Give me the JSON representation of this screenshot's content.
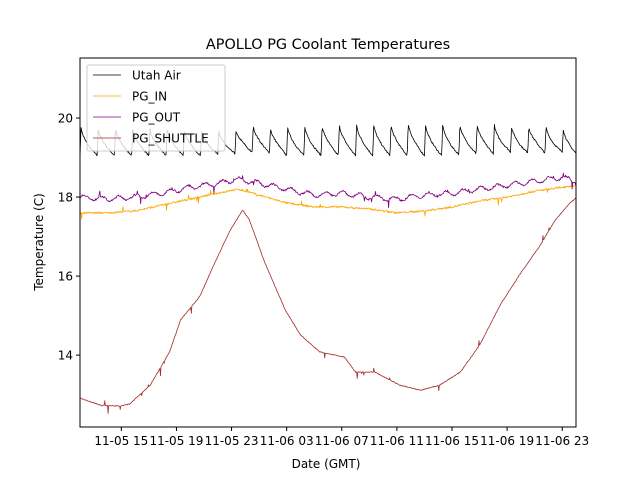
{
  "chart_data": {
    "type": "line",
    "title": "APOLLO PG Coolant Temperatures",
    "xlabel": "Date (GMT)",
    "ylabel": "Temperature (C)",
    "x_units": "hours since 11-05 00:00 GMT",
    "xlim": [
      12,
      48
    ],
    "ylim": [
      12.18,
      21.52
    ],
    "grid": false,
    "legend_position": "top-left",
    "x_ticks": [
      {
        "value": 15,
        "label": "11-05 15"
      },
      {
        "value": 19,
        "label": "11-05 19"
      },
      {
        "value": 23,
        "label": "11-05 23"
      },
      {
        "value": 27,
        "label": "11-06 03"
      },
      {
        "value": 31,
        "label": "11-06 07"
      },
      {
        "value": 35,
        "label": "11-06 11"
      },
      {
        "value": 39,
        "label": "11-06 15"
      },
      {
        "value": 43,
        "label": "11-06 19"
      },
      {
        "value": 47,
        "label": "11-06 23"
      }
    ],
    "y_ticks": [
      {
        "value": 14,
        "label": "14"
      },
      {
        "value": 16,
        "label": "16"
      },
      {
        "value": 18,
        "label": "18"
      },
      {
        "value": 20,
        "label": "20"
      }
    ],
    "series": [
      {
        "name": "Utah Air",
        "color": "#000000",
        "style": "sawtooth",
        "description": "Periodic sawtooth cycling roughly every 1.25 h between ~19.0 and ~19.8 C",
        "x": [
          12,
          13,
          14,
          15,
          16,
          17,
          18,
          19,
          20,
          21,
          22,
          23,
          24,
          25,
          26,
          27,
          28,
          29,
          30,
          31,
          32,
          33,
          34,
          35,
          36,
          37,
          38,
          39,
          40,
          41,
          42,
          43,
          44,
          45,
          46,
          47,
          48
        ],
        "min": [
          19.0,
          19.05,
          19.05,
          19.05,
          19.05,
          19.05,
          19.05,
          19.05,
          19.05,
          19.05,
          19.1,
          19.1,
          19.1,
          19.15,
          19.1,
          19.05,
          19.05,
          19.05,
          19.05,
          19.05,
          19.05,
          19.05,
          19.05,
          19.05,
          19.05,
          19.05,
          19.05,
          19.05,
          19.1,
          19.1,
          19.1,
          19.15,
          19.1,
          19.15,
          19.1,
          19.15,
          19.05
        ],
        "max": [
          19.8,
          19.75,
          19.75,
          19.75,
          19.75,
          19.75,
          19.75,
          19.75,
          19.7,
          19.7,
          19.7,
          19.6,
          19.85,
          19.8,
          19.75,
          19.8,
          19.8,
          19.8,
          19.85,
          19.85,
          19.85,
          19.85,
          19.85,
          19.85,
          19.9,
          19.85,
          19.85,
          19.85,
          19.85,
          19.85,
          19.85,
          19.8,
          19.8,
          19.8,
          19.8,
          19.75,
          19.5
        ],
        "period_hours": 1.25
      },
      {
        "name": "PG_IN",
        "color": "#ffa500",
        "x": [
          12,
          14,
          16,
          18,
          20,
          22,
          23.5,
          25,
          27,
          29,
          31,
          33,
          35,
          37,
          39,
          41,
          43,
          45,
          47,
          48
        ],
        "y": [
          17.6,
          17.6,
          17.65,
          17.8,
          17.95,
          18.1,
          18.2,
          18.05,
          17.85,
          17.75,
          17.75,
          17.7,
          17.6,
          17.65,
          17.75,
          17.9,
          18.0,
          18.15,
          18.25,
          18.3
        ]
      },
      {
        "name": "PG_OUT",
        "color": "#800080",
        "x": [
          12,
          14,
          16,
          18,
          20,
          22,
          23.5,
          25,
          27,
          29,
          31,
          33,
          35,
          37,
          39,
          41,
          43,
          45,
          47,
          48
        ],
        "y": [
          18.0,
          17.95,
          18.0,
          18.1,
          18.25,
          18.35,
          18.45,
          18.35,
          18.2,
          18.05,
          18.1,
          18.0,
          17.95,
          18.05,
          18.1,
          18.2,
          18.3,
          18.4,
          18.5,
          18.4
        ]
      },
      {
        "name": "PG_SHUTTLE",
        "color": "#a52a2a",
        "x": [
          12,
          13.5,
          14.9,
          15.6,
          17.1,
          18.5,
          19.3,
          20.7,
          21.8,
          22.9,
          23.8,
          24.3,
          25.4,
          26.9,
          28.0,
          29.4,
          31.2,
          32.0,
          33.4,
          35.2,
          36.7,
          38.1,
          39.6,
          41.0,
          42.5,
          43.9,
          45.4,
          46.5,
          47.6,
          48.0
        ],
        "y": [
          12.91,
          12.73,
          12.71,
          12.76,
          13.24,
          14.08,
          14.89,
          15.49,
          16.35,
          17.16,
          17.67,
          17.42,
          16.35,
          15.14,
          14.51,
          14.08,
          13.95,
          13.57,
          13.57,
          13.24,
          13.11,
          13.24,
          13.57,
          14.25,
          15.27,
          16.03,
          16.78,
          17.42,
          17.87,
          17.97
        ]
      }
    ]
  }
}
